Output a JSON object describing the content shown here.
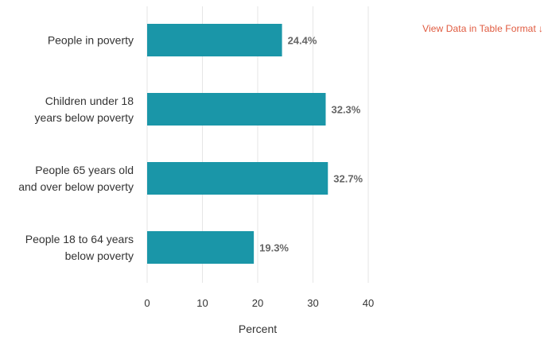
{
  "table_link": {
    "label": "View Data in Table Format",
    "arrow": "↓"
  },
  "chart_data": {
    "type": "bar",
    "orientation": "horizontal",
    "categories": [
      [
        "People in poverty"
      ],
      [
        "Children under 18",
        "years below poverty"
      ],
      [
        "People 65 years old",
        "and over below poverty"
      ],
      [
        "People 18 to 64 years",
        "below poverty"
      ]
    ],
    "values": [
      24.4,
      32.3,
      32.7,
      19.3
    ],
    "value_labels": [
      "24.4%",
      "32.3%",
      "32.7%",
      "19.3%"
    ],
    "xlabel": "Percent",
    "xlim": [
      0,
      40
    ],
    "xticks": [
      0,
      10,
      20,
      30,
      40
    ],
    "grid": true,
    "colors": {
      "bar": "#1a96a8",
      "grid": "#e6e6e6",
      "label": "#333333",
      "value_label": "#666666"
    }
  }
}
